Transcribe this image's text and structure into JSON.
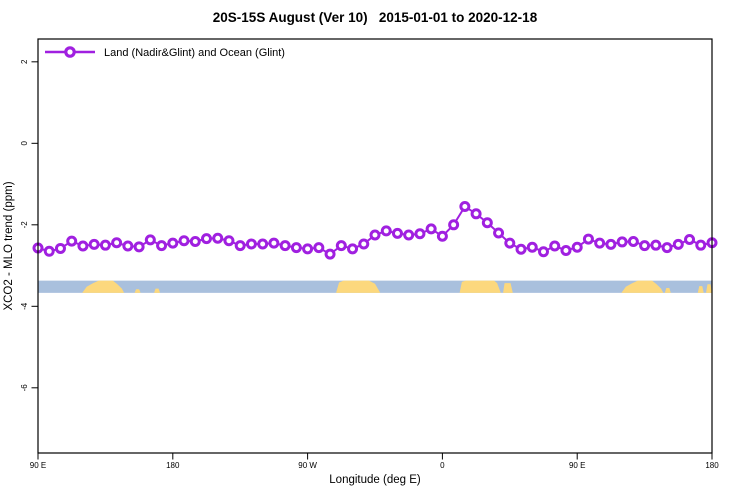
{
  "title": "20S-15S August (Ver 10)   2015-01-01 to 2020-12-18",
  "legend": {
    "label": "Land (Nadir&Glint) and Ocean (Glint)"
  },
  "colors": {
    "series_purple": "#a020e0",
    "ocean_blue": "#a9c0dd",
    "land_yellow": "#fcd87d",
    "axis_black": "#000000",
    "background": "#ffffff"
  },
  "chart_data": {
    "type": "line",
    "title": "20S-15S August (Ver 10)   2015-01-01 to 2020-12-18",
    "xlabel": "Longitude (deg E)",
    "ylabel": "XCO2 - MLO trend (ppm)",
    "legend_position": "top-left-inside",
    "grid": false,
    "x_axis": {
      "range": [
        90,
        540
      ],
      "note": "longitude axis wraps eastward from 90E through 180, 90W, 0, 90E to 180",
      "ticks": [
        {
          "deg": 90,
          "label": "90 E"
        },
        {
          "deg": 180,
          "label": "180"
        },
        {
          "deg": 270,
          "label": "90 W"
        },
        {
          "deg": 360,
          "label": "0"
        },
        {
          "deg": 450,
          "label": "90 E"
        },
        {
          "deg": 540,
          "label": "180"
        }
      ]
    },
    "y_axis": {
      "range": [
        -7.6,
        2.56
      ],
      "ticks": [
        2,
        0,
        -2,
        -4,
        -6
      ]
    },
    "series": [
      {
        "name": "Land (Nadir&Glint) and Ocean (Glint)",
        "color": "#a020e0",
        "marker": "open-circle",
        "points": [
          [
            90,
            -2.57
          ],
          [
            97.5,
            -2.65
          ],
          [
            105,
            -2.58
          ],
          [
            112.5,
            -2.4
          ],
          [
            120,
            -2.52
          ],
          [
            127.5,
            -2.48
          ],
          [
            135,
            -2.5
          ],
          [
            142.5,
            -2.44
          ],
          [
            150,
            -2.52
          ],
          [
            157.5,
            -2.54
          ],
          [
            165,
            -2.37
          ],
          [
            172.5,
            -2.51
          ],
          [
            180,
            -2.45
          ],
          [
            187.5,
            -2.39
          ],
          [
            195,
            -2.41
          ],
          [
            202.5,
            -2.34
          ],
          [
            210,
            -2.33
          ],
          [
            217.5,
            -2.39
          ],
          [
            225,
            -2.51
          ],
          [
            232.5,
            -2.47
          ],
          [
            240,
            -2.47
          ],
          [
            247.5,
            -2.45
          ],
          [
            255,
            -2.51
          ],
          [
            262.5,
            -2.56
          ],
          [
            270,
            -2.59
          ],
          [
            277.5,
            -2.56
          ],
          [
            285,
            -2.72
          ],
          [
            292.5,
            -2.51
          ],
          [
            300,
            -2.59
          ],
          [
            307.5,
            -2.47
          ],
          [
            315,
            -2.25
          ],
          [
            322.5,
            -2.15
          ],
          [
            330,
            -2.21
          ],
          [
            337.5,
            -2.25
          ],
          [
            345,
            -2.22
          ],
          [
            352.5,
            -2.1
          ],
          [
            360,
            -2.28
          ],
          [
            367.5,
            -2.0
          ],
          [
            375,
            -1.55
          ],
          [
            382.5,
            -1.73
          ],
          [
            390,
            -1.95
          ],
          [
            397.5,
            -2.2
          ],
          [
            405,
            -2.45
          ],
          [
            412.5,
            -2.6
          ],
          [
            420,
            -2.55
          ],
          [
            427.5,
            -2.66
          ],
          [
            435,
            -2.52
          ],
          [
            442.5,
            -2.63
          ],
          [
            450,
            -2.55
          ],
          [
            457.5,
            -2.35
          ],
          [
            465,
            -2.45
          ],
          [
            472.5,
            -2.48
          ],
          [
            480,
            -2.42
          ],
          [
            487.5,
            -2.41
          ],
          [
            495,
            -2.51
          ],
          [
            502.5,
            -2.5
          ],
          [
            510,
            -2.56
          ],
          [
            517.5,
            -2.48
          ],
          [
            525,
            -2.36
          ],
          [
            532.5,
            -2.5
          ],
          [
            540,
            -2.44
          ]
        ]
      }
    ],
    "surface_band": {
      "description": "land(yellow)/ocean(blue) fraction strip along longitude",
      "y_top": -3.37,
      "y_bottom": -3.67,
      "ocean_color": "#a9c0dd",
      "land_color": "#fcd87d",
      "land_patches": [
        {
          "name": "australia",
          "points": [
            [
              119.5,
              0
            ],
            [
              122.5,
              0.5
            ],
            [
              126.5,
              0.78
            ],
            [
              130.5,
              1
            ],
            [
              140,
              1
            ],
            [
              143,
              0.7
            ],
            [
              146,
              0.35
            ],
            [
              147.5,
              0
            ]
          ]
        },
        {
          "name": "island-speck-1",
          "points": [
            [
              154.5,
              0
            ],
            [
              155.5,
              0.3
            ],
            [
              157.5,
              0.3
            ],
            [
              158.5,
              0
            ]
          ]
        },
        {
          "name": "island-speck-2",
          "points": [
            [
              167.5,
              0
            ],
            [
              168.5,
              0.35
            ],
            [
              170.5,
              0.35
            ],
            [
              171.5,
              0
            ]
          ]
        },
        {
          "name": "south-america",
          "points": [
            [
              289,
              0
            ],
            [
              291,
              0.85
            ],
            [
              294,
              1
            ],
            [
              311,
              1
            ],
            [
              315,
              0.75
            ],
            [
              318.5,
              0
            ]
          ]
        },
        {
          "name": "africa",
          "points": [
            [
              371.5,
              0
            ],
            [
              373,
              0.9
            ],
            [
              375.5,
              1
            ],
            [
              394.5,
              1
            ],
            [
              396.5,
              0.8
            ],
            [
              399,
              0
            ]
          ]
        },
        {
          "name": "madagascar",
          "points": [
            [
              400.5,
              0
            ],
            [
              401.5,
              0.8
            ],
            [
              405.5,
              0.8
            ],
            [
              407,
              0
            ]
          ]
        },
        {
          "name": "australia-wrap",
          "points": [
            [
              479.5,
              0
            ],
            [
              482.5,
              0.5
            ],
            [
              486.5,
              0.78
            ],
            [
              490.5,
              1
            ],
            [
              500,
              1
            ],
            [
              503,
              0.7
            ],
            [
              506,
              0.35
            ],
            [
              507.5,
              0
            ]
          ]
        },
        {
          "name": "island-speck-3",
          "points": [
            [
              508.5,
              0
            ],
            [
              509.5,
              0.4
            ],
            [
              511.5,
              0.4
            ],
            [
              512.5,
              0
            ]
          ]
        },
        {
          "name": "island-speck-4",
          "points": [
            [
              530.5,
              0
            ],
            [
              531.5,
              0.55
            ],
            [
              533.5,
              0.55
            ],
            [
              534.5,
              0
            ]
          ]
        },
        {
          "name": "island-speck-5",
          "points": [
            [
              536,
              0
            ],
            [
              537,
              0.7
            ],
            [
              539,
              0.7
            ],
            [
              540,
              0
            ]
          ]
        }
      ]
    }
  }
}
